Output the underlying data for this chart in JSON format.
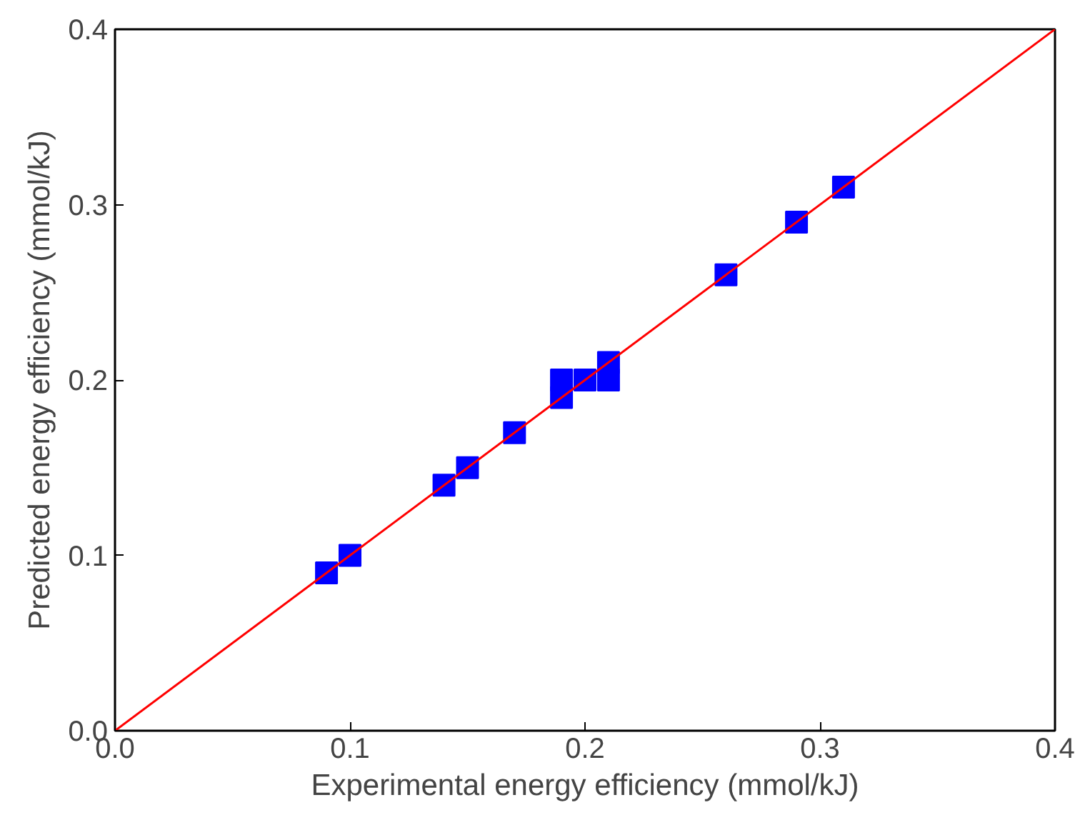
{
  "chart_data": {
    "type": "scatter",
    "xlabel": "Experimental energy efficiency (mmol/kJ)",
    "ylabel": "Predicted energy efficiency (mmol/kJ)",
    "xlim": [
      0,
      0.4
    ],
    "ylim": [
      0,
      0.4
    ],
    "xticks": [
      {
        "value": 0,
        "label": "0.0"
      },
      0.1,
      0.2,
      0.3,
      0.4
    ],
    "yticks": [
      {
        "value": 0,
        "label": "0.0"
      },
      0.1,
      0.2,
      0.3,
      0.4
    ],
    "grid": false,
    "series": [
      {
        "marker": "square",
        "color": "#0000ff",
        "x": [
          0.09,
          0.1,
          0.14,
          0.15,
          0.17,
          0.19,
          0.19,
          0.2,
          0.21,
          0.21,
          0.26,
          0.29,
          0.31
        ],
        "values": [
          0.09,
          0.1,
          0.14,
          0.15,
          0.17,
          0.19,
          0.2,
          0.2,
          0.2,
          0.21,
          0.26,
          0.29,
          0.31
        ]
      },
      {
        "type": "line",
        "color": "#ff0000",
        "x": [
          0,
          0.4
        ],
        "values": [
          0,
          0.4
        ]
      }
    ]
  }
}
